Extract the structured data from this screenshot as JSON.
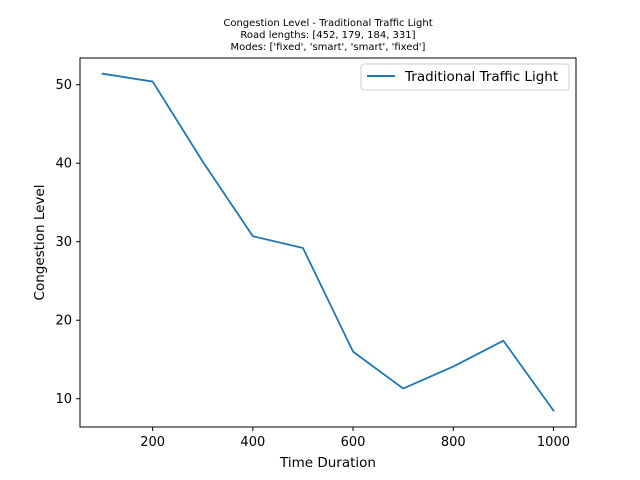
{
  "chart_data": {
    "type": "line",
    "title_lines": [
      "Congestion Level - Traditional Traffic Light",
      "Road lengths: [452, 179, 184, 331]",
      "Modes: ['fixed', 'smart', 'smart', 'fixed']"
    ],
    "xlabel": "Time Duration",
    "ylabel": "Congestion Level",
    "xlim": [
      55,
      1045
    ],
    "ylim": [
      6.4,
      53.4
    ],
    "x_ticks": [
      200,
      400,
      600,
      800,
      1000
    ],
    "y_ticks": [
      10,
      20,
      30,
      40,
      50
    ],
    "grid": false,
    "legend_position": "upper right",
    "series": [
      {
        "name": "Traditional Traffic Light",
        "color": "#1f77b4",
        "x": [
          100,
          200,
          300,
          400,
          500,
          600,
          700,
          800,
          900,
          1000
        ],
        "y": [
          51.4,
          50.4,
          40.2,
          30.7,
          29.2,
          16.0,
          11.3,
          14.1,
          17.4,
          8.5
        ]
      }
    ]
  }
}
